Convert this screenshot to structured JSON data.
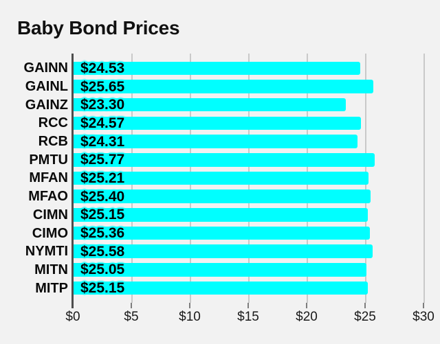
{
  "page": {
    "background_color": "#f2f2f2"
  },
  "chart_data": {
    "type": "bar",
    "orientation": "horizontal",
    "title": "Baby Bond Prices",
    "categories": [
      "GAINN",
      "GAINL",
      "GAINZ",
      "RCC",
      "RCB",
      "PMTU",
      "MFAN",
      "MFAO",
      "CIMN",
      "CIMO",
      "NYMTI",
      "MITN",
      "MITP"
    ],
    "values": [
      24.53,
      25.65,
      23.3,
      24.57,
      24.31,
      25.77,
      25.21,
      25.4,
      25.15,
      25.36,
      25.58,
      25.05,
      25.15
    ],
    "value_labels": [
      "$24.53",
      "$25.65",
      "$23.30",
      "$24.57",
      "$24.31",
      "$25.77",
      "$25.21",
      "$25.40",
      "$25.15",
      "$25.36",
      "$25.58",
      "$25.05",
      "$25.15"
    ],
    "xlabel": "",
    "ylabel": "",
    "xlim": [
      0,
      30
    ],
    "x_ticks": [
      0,
      5,
      10,
      15,
      20,
      25,
      30
    ],
    "x_tick_labels": [
      "$0",
      "$5",
      "$10",
      "$15",
      "$20",
      "$25",
      "$30"
    ],
    "grid": "vertical-only",
    "legend": "none",
    "bar_color": "#00ffff",
    "value_halo_color": "#00ffff",
    "gridline_color": "#c9c9c9",
    "axis_line_color": "#4d4d4d"
  }
}
